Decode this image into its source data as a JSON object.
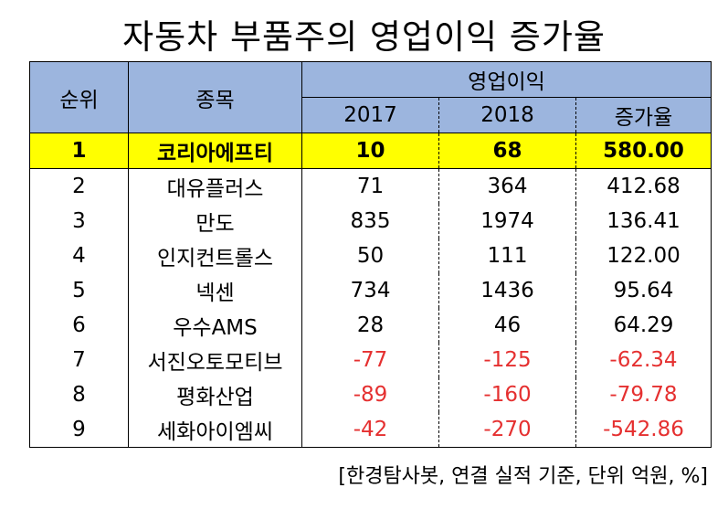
{
  "title": "자동차 부품주의 영업이익 증가율",
  "table": {
    "headers": {
      "rank": "순위",
      "name": "종목",
      "group": "영업이익",
      "year1": "2017",
      "year2": "2018",
      "rate": "증가율"
    },
    "rows": [
      {
        "rank": "1",
        "name": "코리아에프티",
        "v2017": "10",
        "v2018": "68",
        "rate": "580.00",
        "highlight": true,
        "negative": false
      },
      {
        "rank": "2",
        "name": "대유플러스",
        "v2017": "71",
        "v2018": "364",
        "rate": "412.68",
        "highlight": false,
        "negative": false
      },
      {
        "rank": "3",
        "name": "만도",
        "v2017": "835",
        "v2018": "1974",
        "rate": "136.41",
        "highlight": false,
        "negative": false
      },
      {
        "rank": "4",
        "name": "인지컨트롤스",
        "v2017": "50",
        "v2018": "111",
        "rate": "122.00",
        "highlight": false,
        "negative": false
      },
      {
        "rank": "5",
        "name": "넥센",
        "v2017": "734",
        "v2018": "1436",
        "rate": "95.64",
        "highlight": false,
        "negative": false
      },
      {
        "rank": "6",
        "name": "우수AMS",
        "v2017": "28",
        "v2018": "46",
        "rate": "64.29",
        "highlight": false,
        "negative": false
      },
      {
        "rank": "7",
        "name": "서진오토모티브",
        "v2017": "-77",
        "v2018": "-125",
        "rate": "-62.34",
        "highlight": false,
        "negative": true
      },
      {
        "rank": "8",
        "name": "평화산업",
        "v2017": "-89",
        "v2018": "-160",
        "rate": "-79.78",
        "highlight": false,
        "negative": true
      },
      {
        "rank": "9",
        "name": "세화아이엠씨",
        "v2017": "-42",
        "v2018": "-270",
        "rate": "-542.86",
        "highlight": false,
        "negative": true
      }
    ]
  },
  "note": "[한경탐사봇, 연결 실적 기준, 단위 억원, %]",
  "colors": {
    "header_bg": "#9cb5de",
    "highlight_bg": "#ffff00",
    "negative_text": "#e53030"
  }
}
